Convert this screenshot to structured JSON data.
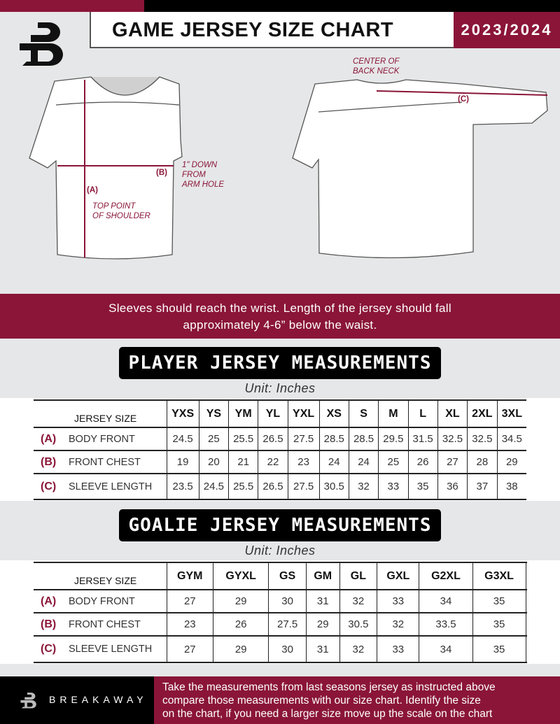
{
  "header": {
    "title": "GAME JERSEY SIZE CHART",
    "season": "2023/2024"
  },
  "brand": {
    "logo_letter": "B",
    "name": "BREAKAWAY"
  },
  "colors": {
    "accent": "#8a1538",
    "dark": "#000000",
    "background": "#e6e7e8"
  },
  "diagram": {
    "front_labels": {
      "a": "(A)",
      "a_desc_1": "TOP POINT",
      "a_desc_2": "OF SHOULDER",
      "b": "(B)",
      "b_desc_1": "1\" DOWN",
      "b_desc_2": "FROM",
      "b_desc_3": "ARM HOLE"
    },
    "back_labels": {
      "c": "(C)",
      "c_desc_1": "CENTER OF",
      "c_desc_2": "BACK NECK"
    }
  },
  "banner": {
    "line1": "Sleeves should reach the wrist. Length of the jersey should fall",
    "line2": "approximately 4-6” below the waist."
  },
  "player": {
    "title": "PLAYER JERSEY MEASUREMENTS",
    "unit": "Unit: Inches",
    "header_label": "JERSEY SIZE",
    "sizes": [
      "YXS",
      "YS",
      "YM",
      "YL",
      "YXL",
      "XS",
      "S",
      "M",
      "L",
      "XL",
      "2XL",
      "3XL"
    ],
    "rows": [
      {
        "letter": "(A)",
        "label": "BODY FRONT",
        "values": [
          "24.5",
          "25",
          "25.5",
          "26.5",
          "27.5",
          "28.5",
          "28.5",
          "29.5",
          "31.5",
          "32.5",
          "32.5",
          "34.5"
        ]
      },
      {
        "letter": "(B)",
        "label": "FRONT CHEST",
        "values": [
          "19",
          "20",
          "21",
          "22",
          "23",
          "24",
          "24",
          "25",
          "26",
          "27",
          "28",
          "29"
        ]
      },
      {
        "letter": "(C)",
        "label": "SLEEVE LENGTH",
        "values": [
          "23.5",
          "24.5",
          "25.5",
          "26.5",
          "27.5",
          "30.5",
          "32",
          "33",
          "35",
          "36",
          "37",
          "38"
        ]
      }
    ]
  },
  "goalie": {
    "title": "GOALIE JERSEY MEASUREMENTS",
    "unit": "Unit: Inches",
    "header_label": "JERSEY SIZE",
    "sizes": [
      "GYM",
      "GYXL",
      "GS",
      "GM",
      "GL",
      "GXL",
      "G2XL",
      "G3XL",
      ""
    ],
    "rows": [
      {
        "letter": "(A)",
        "label": "BODY FRONT",
        "values": [
          "27",
          "29",
          "30",
          "31",
          "32",
          "33",
          "34",
          "35",
          ""
        ]
      },
      {
        "letter": "(B)",
        "label": "FRONT CHEST",
        "values": [
          "23",
          "26",
          "27.5",
          "29",
          "30.5",
          "32",
          "33.5",
          "35",
          ""
        ]
      },
      {
        "letter": "(C)",
        "label": "SLEEVE LENGTH",
        "values": [
          "27",
          "29",
          "30",
          "31",
          "32",
          "33",
          "34",
          "35",
          ""
        ]
      }
    ]
  },
  "footer": {
    "text_1": "Take the measurements from last seasons jersey as instructed above",
    "text_2": "compare those measurements  with our size chart. Identify the size",
    "text_3": "on the chart, if you need a larger size move up the scale on the chart"
  }
}
